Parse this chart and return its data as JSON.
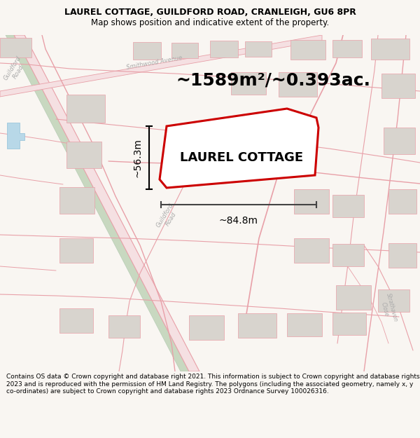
{
  "title_line1": "LAUREL COTTAGE, GUILDFORD ROAD, CRANLEIGH, GU6 8PR",
  "title_line2": "Map shows position and indicative extent of the property.",
  "area_text": "~1589m²/~0.393ac.",
  "property_label": "LAUREL COTTAGE",
  "dim_width": "~84.8m",
  "dim_height": "~56.3m",
  "footer_text": "Contains OS data © Crown copyright and database right 2021. This information is subject to Crown copyright and database rights 2023 and is reproduced with the permission of HM Land Registry. The polygons (including the associated geometry, namely x, y co-ordinates) are subject to Crown copyright and database rights 2023 Ordnance Survey 100026316.",
  "map_bg": "#f9f6f2",
  "road_line_color": "#e8a0a8",
  "road_fill_color": "#f5e0e2",
  "plot_color": "#cc0000",
  "building_fill": "#d8d4ce",
  "building_edge": "#e8a0a8",
  "water_fill": "#b8d8e8",
  "green_fill": "#d8e8d0",
  "title_fontsize": 9,
  "subtitle_fontsize": 8.5,
  "area_fontsize": 18,
  "label_fontsize": 13,
  "dim_fontsize": 10,
  "footer_fontsize": 6.5,
  "road_label_color": "#aaaaaa",
  "road_label_size": 6
}
